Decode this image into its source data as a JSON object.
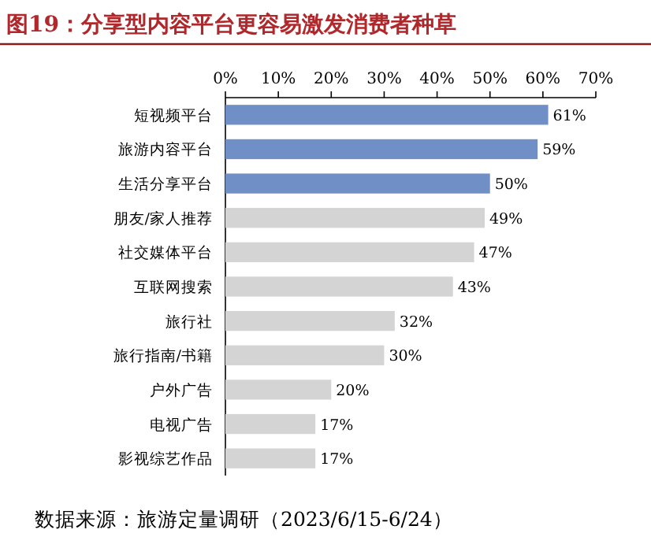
{
  "chart_data": {
    "type": "bar",
    "orientation": "horizontal",
    "title": "图19：分享型内容平台更容易激发消费者种草",
    "categories": [
      "短视频平台",
      "旅游内容平台",
      "生活分享平台",
      "朋友/家人推荐",
      "社交媒体平台",
      "互联网搜索",
      "旅行社",
      "旅行指南/书籍",
      "户外广告",
      "电视广告",
      "影视综艺作品"
    ],
    "values": [
      61,
      59,
      50,
      49,
      47,
      43,
      32,
      30,
      20,
      17,
      17
    ],
    "value_labels": [
      "61%",
      "59%",
      "50%",
      "49%",
      "47%",
      "43%",
      "32%",
      "30%",
      "20%",
      "17%",
      "17%"
    ],
    "colors": [
      "#6f8fc6",
      "#6f8fc6",
      "#6f8fc6",
      "#d4d4d4",
      "#d4d4d4",
      "#d4d4d4",
      "#d4d4d4",
      "#d4d4d4",
      "#d4d4d4",
      "#d4d4d4",
      "#d4d4d4"
    ],
    "xlim": [
      0,
      70
    ],
    "xticks": [
      {
        "value": 0,
        "label": "0%"
      },
      {
        "value": 10,
        "label": "10%"
      },
      {
        "value": 20,
        "label": "20%"
      },
      {
        "value": 30,
        "label": "30%"
      },
      {
        "value": 40,
        "label": "40%"
      },
      {
        "value": 50,
        "label": "50%"
      },
      {
        "value": 60,
        "label": "60%"
      },
      {
        "value": 70,
        "label": "70%"
      }
    ],
    "annotations": [
      "数据来源：旅游定量调研（2023/6/15-6/24）"
    ]
  }
}
